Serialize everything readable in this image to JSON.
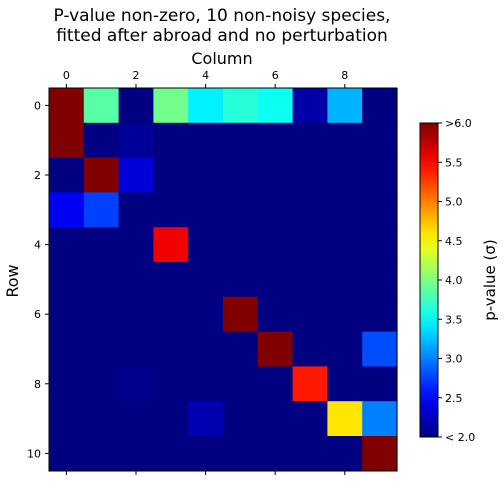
{
  "chart_data": {
    "type": "heatmap",
    "title_line1": "P-value non-zero, 10 non-noisy species,",
    "title_line2": "fitted after abroad and no perturbation",
    "xlabel": "Column",
    "ylabel": "Row",
    "x_ticks": [
      0,
      2,
      4,
      6,
      8
    ],
    "y_ticks": [
      0,
      2,
      4,
      6,
      8,
      10
    ],
    "rows": 11,
    "cols": 10,
    "colormap": "jet",
    "vmin": 2.0,
    "vmax": 6.0,
    "colorbar_label": "p-value (σ)",
    "colorbar_ticks": [
      {
        "value": 2.0,
        "label": "< 2.0"
      },
      {
        "value": 2.5,
        "label": "2.5"
      },
      {
        "value": 3.0,
        "label": "3.0"
      },
      {
        "value": 3.5,
        "label": "3.5"
      },
      {
        "value": 4.0,
        "label": "4.0"
      },
      {
        "value": 4.5,
        "label": "4.5"
      },
      {
        "value": 5.0,
        "label": "5.0"
      },
      {
        "value": 5.5,
        "label": "5.5"
      },
      {
        "value": 6.0,
        "label": ">6.0"
      }
    ],
    "values": [
      [
        6.0,
        3.85,
        2.0,
        3.95,
        3.45,
        3.65,
        3.55,
        2.15,
        3.2,
        2.0
      ],
      [
        6.0,
        2.0,
        2.1,
        2.0,
        2.0,
        2.0,
        2.0,
        2.0,
        2.0,
        2.0
      ],
      [
        2.0,
        6.0,
        2.35,
        2.0,
        2.0,
        2.0,
        2.0,
        2.0,
        2.0,
        2.0
      ],
      [
        2.45,
        2.75,
        2.0,
        2.0,
        2.0,
        2.0,
        2.0,
        2.0,
        2.0,
        2.0
      ],
      [
        2.0,
        2.0,
        2.0,
        5.55,
        2.0,
        2.0,
        2.0,
        2.0,
        2.0,
        2.0
      ],
      [
        2.0,
        2.0,
        2.0,
        2.0,
        2.0,
        2.0,
        2.0,
        2.0,
        2.0,
        2.0
      ],
      [
        2.0,
        2.0,
        2.0,
        2.0,
        2.0,
        6.0,
        2.0,
        2.0,
        2.0,
        2.0
      ],
      [
        2.0,
        2.0,
        2.0,
        2.0,
        2.0,
        2.0,
        6.0,
        2.0,
        2.0,
        2.8
      ],
      [
        2.0,
        2.0,
        2.05,
        2.0,
        2.0,
        2.0,
        2.0,
        5.4,
        2.0,
        2.0
      ],
      [
        2.0,
        2.0,
        2.0,
        2.0,
        2.2,
        2.0,
        2.0,
        2.0,
        4.6,
        3.0
      ],
      [
        2.0,
        2.0,
        2.0,
        2.0,
        2.0,
        2.0,
        2.0,
        2.0,
        2.0,
        6.0
      ]
    ]
  }
}
